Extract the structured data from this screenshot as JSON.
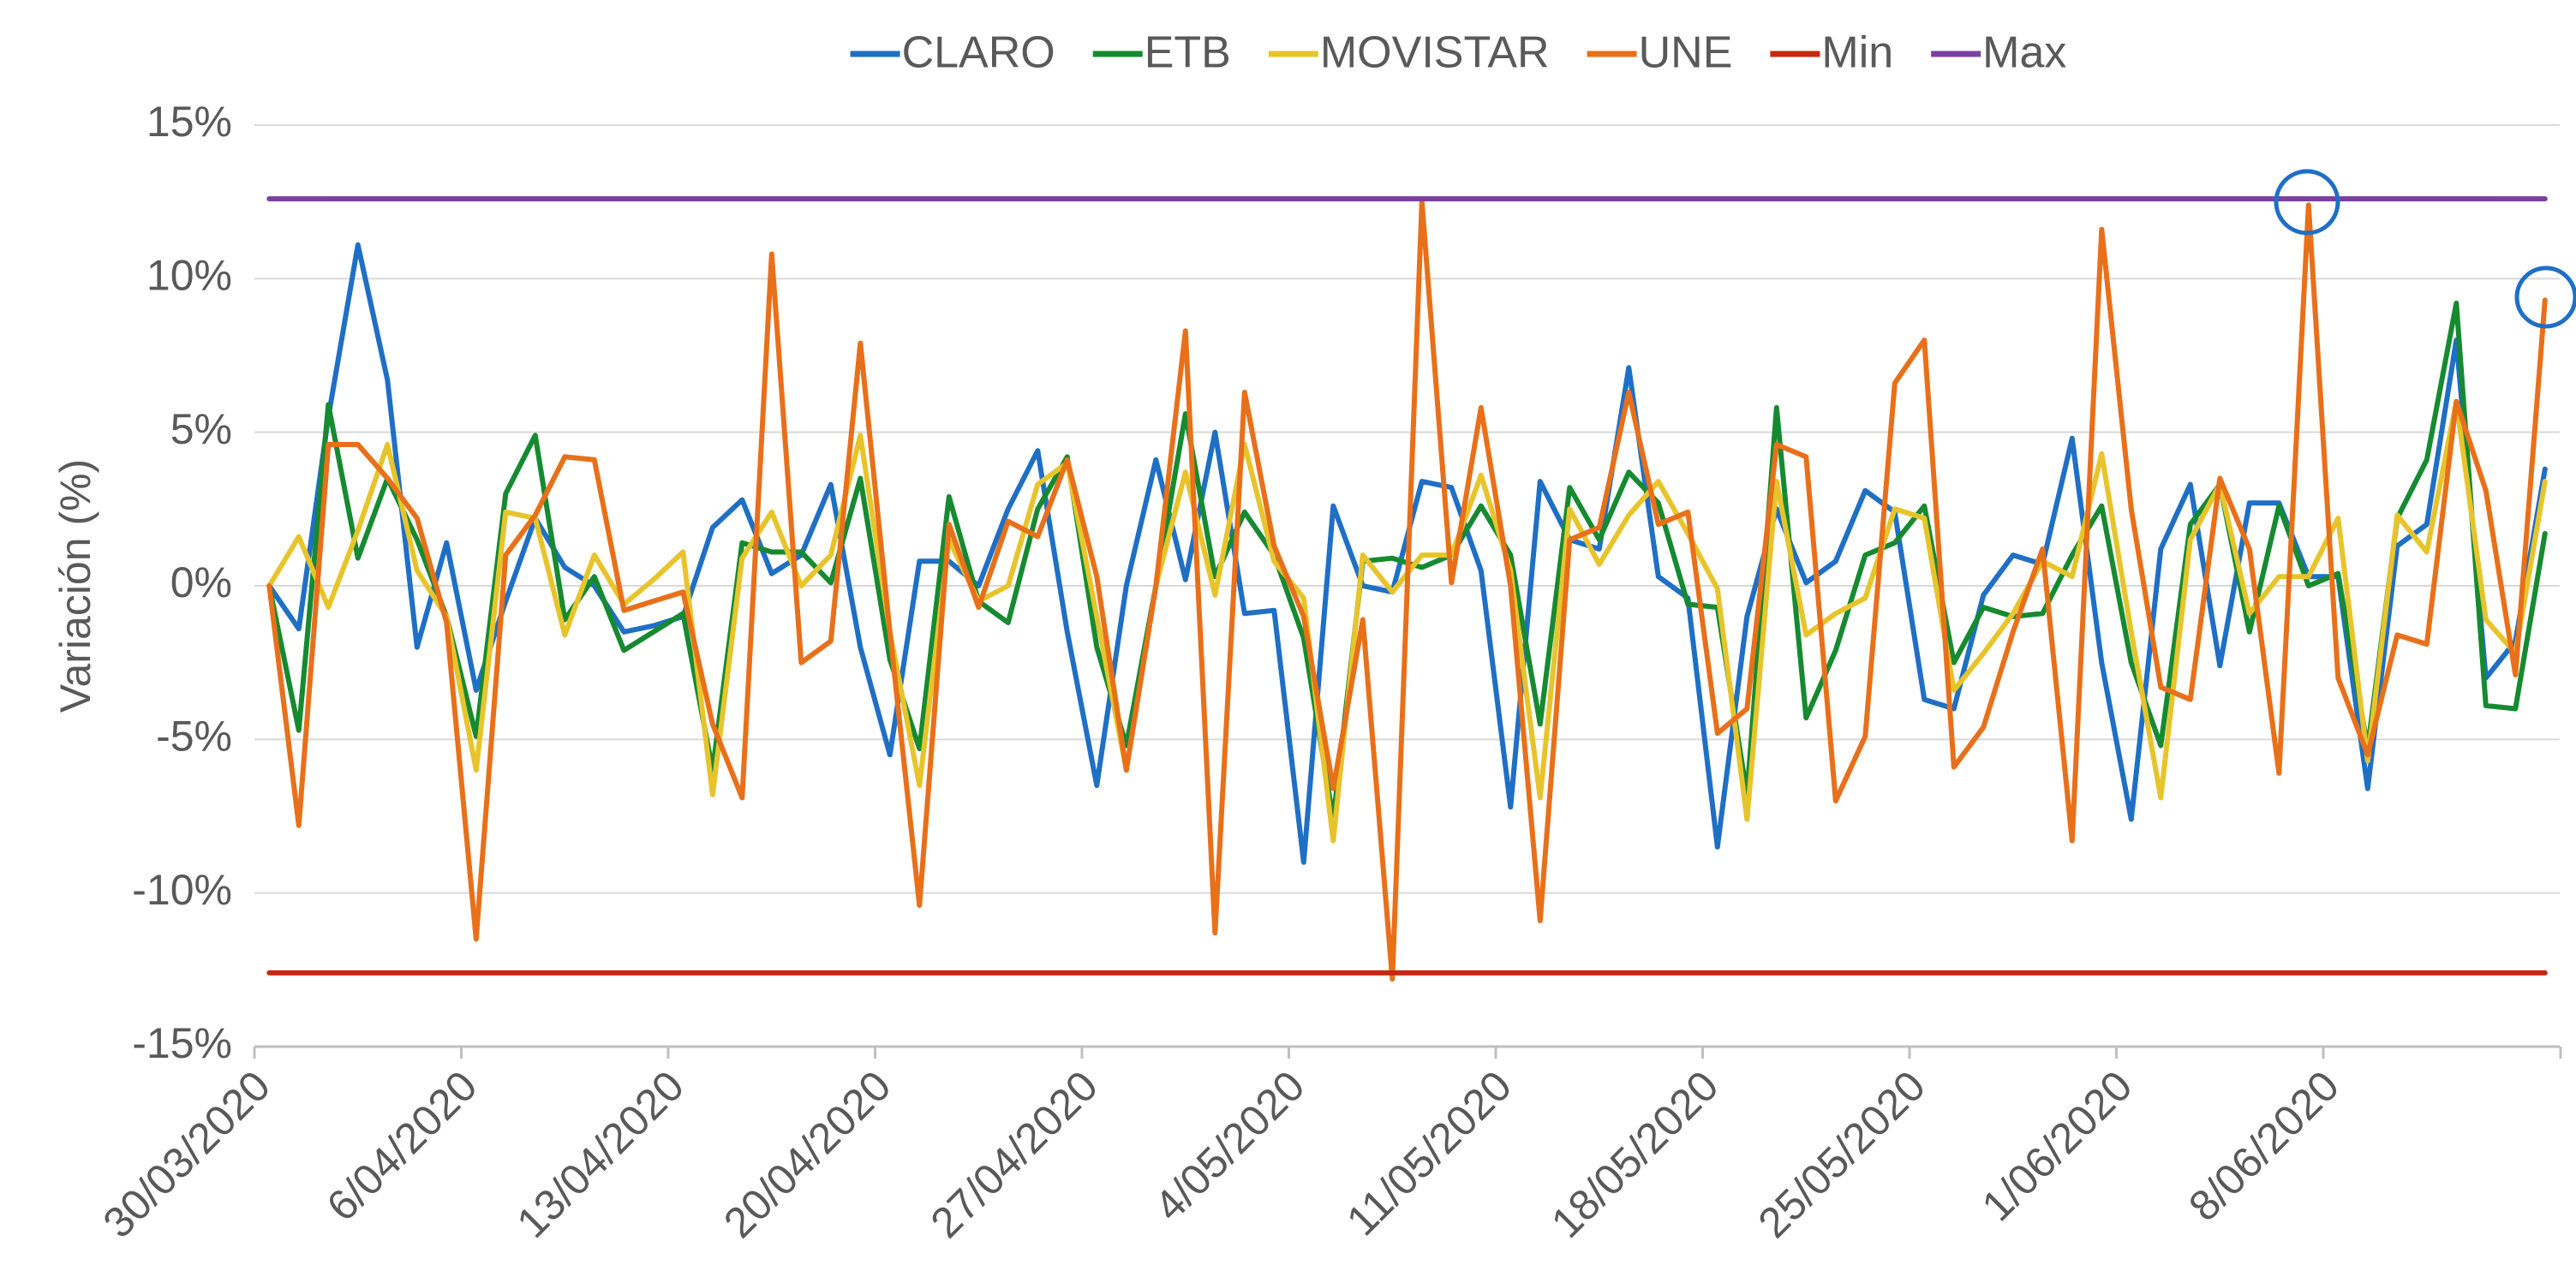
{
  "chart_data": {
    "type": "line",
    "y_label": "Variación (%)",
    "categories": [
      "30/03/2020",
      null,
      null,
      null,
      null,
      null,
      null,
      "6/04/2020",
      null,
      null,
      null,
      null,
      null,
      null,
      "13/04/2020",
      null,
      null,
      null,
      null,
      null,
      null,
      "20/04/2020",
      null,
      null,
      null,
      null,
      null,
      null,
      "27/04/2020",
      null,
      null,
      null,
      null,
      null,
      null,
      "4/05/2020",
      null,
      null,
      null,
      null,
      null,
      null,
      "11/05/2020",
      null,
      null,
      null,
      null,
      null,
      null,
      "18/05/2020",
      null,
      null,
      null,
      null,
      null,
      null,
      "25/05/2020",
      null,
      null,
      null,
      null,
      null,
      null,
      "1/06/2020",
      null,
      null,
      null,
      null,
      null,
      null,
      "8/06/2020",
      null,
      null,
      null,
      null,
      null,
      null,
      null
    ],
    "series": [
      {
        "name": "CLARO",
        "color": "#1f6fc5",
        "values": [
          0,
          -1.4,
          5.5,
          11.1,
          6.7,
          -2,
          1.4,
          -3.4,
          -0.5,
          2.2,
          0.6,
          0,
          -1.5,
          -1.3,
          -1,
          1.9,
          2.8,
          0.4,
          1,
          3.3,
          -2,
          -5.5,
          0.8,
          0.8,
          0,
          2.5,
          4.4,
          -1.5,
          -6.5,
          0,
          4.1,
          0.2,
          5,
          -0.9,
          -0.8,
          -9,
          2.6,
          0,
          -0.2,
          3.4,
          3.2,
          0.5,
          -7.2,
          3.4,
          1.5,
          1.2,
          7.1,
          0.3,
          -0.4,
          -8.5,
          -1,
          2.5,
          0.1,
          0.8,
          3.1,
          2.4,
          -3.7,
          -4,
          -0.3,
          1,
          0.7,
          4.8,
          -2.5,
          -7.6,
          1.2,
          3.3,
          -2.6,
          2.7,
          2.7,
          0.3,
          0.3,
          -6.6,
          1.3,
          2,
          8,
          -3,
          -1.8,
          3.8
        ]
      },
      {
        "name": "ETB",
        "color": "#168a30",
        "values": [
          0,
          -4.7,
          5.9,
          0.9,
          3.5,
          1.5,
          -1,
          -4.9,
          3,
          4.9,
          -1.1,
          0.3,
          -2.1,
          -1.5,
          -0.9,
          -6,
          1.4,
          1.1,
          1.1,
          0.1,
          3.5,
          -2.4,
          -5.3,
          2.9,
          -0.5,
          -1.2,
          2.5,
          4.2,
          -2,
          -5.2,
          0,
          5.6,
          0.3,
          2.4,
          1,
          -1.7,
          -7.6,
          0.8,
          0.9,
          0.6,
          1,
          2.6,
          1,
          -4.5,
          3.2,
          1.5,
          3.7,
          2.7,
          -0.6,
          -0.7,
          -6.8,
          5.8,
          -4.3,
          -2.1,
          1,
          1.4,
          2.6,
          -2.5,
          -0.7,
          -1,
          -0.9,
          1,
          2.6,
          -2.5,
          -5.2,
          2,
          3.3,
          -1.5,
          2.6,
          0,
          0.4,
          -5.3,
          2.2,
          4.1,
          9.2,
          -3.9,
          -4,
          1.7
        ]
      },
      {
        "name": "MOVISTAR",
        "color": "#e8c42c",
        "values": [
          0,
          1.6,
          -0.7,
          1.8,
          4.6,
          0.5,
          -1,
          -6,
          2.4,
          2.2,
          -1.6,
          1,
          -0.6,
          0.2,
          1.1,
          -6.8,
          0.9,
          2.4,
          0,
          1,
          4.9,
          -1.5,
          -6.5,
          1.5,
          -0.5,
          0,
          3.3,
          4,
          -1,
          -6,
          0,
          3.7,
          -0.3,
          4.6,
          0.8,
          -0.4,
          -8.3,
          1,
          -0.2,
          1,
          1,
          3.6,
          0.5,
          -6.9,
          2.5,
          0.7,
          2.3,
          3.4,
          1.7,
          -0.1,
          -7.6,
          3.4,
          -1.6,
          -0.9,
          -0.4,
          2.5,
          2.2,
          -3.4,
          -2.2,
          -0.9,
          0.8,
          0.3,
          4.3,
          -1.5,
          -6.9,
          1.5,
          3.3,
          -0.9,
          0.3,
          0.3,
          2.2,
          -5.7,
          2.3,
          1.1,
          6,
          -1.1,
          -2.2,
          3.4
        ]
      },
      {
        "name": "UNE",
        "color": "#e8701a",
        "values": [
          0,
          -7.8,
          4.6,
          4.6,
          3.5,
          2.2,
          -1.2,
          -11.5,
          1,
          2.3,
          4.2,
          4.1,
          -0.8,
          -0.5,
          -0.2,
          -4.5,
          -6.9,
          10.8,
          -2.5,
          -1.8,
          7.9,
          -1.5,
          -10.4,
          2,
          -0.7,
          2.1,
          1.6,
          4.1,
          0.3,
          -6,
          0,
          8.3,
          -11.3,
          6.3,
          1.3,
          -1,
          -6.6,
          -1.1,
          -12.8,
          12.5,
          0.1,
          5.8,
          0,
          -10.9,
          1.5,
          1.9,
          6.3,
          2,
          2.4,
          -4.8,
          -4,
          4.6,
          4.2,
          -7,
          -4.9,
          6.6,
          8,
          -5.9,
          -4.6,
          -1.5,
          1.2,
          -8.3,
          11.6,
          2.5,
          -3.3,
          -3.7,
          3.5,
          1.2,
          -6.1,
          12.4,
          -3,
          -5.5,
          -1.6,
          -1.9,
          6,
          3.1,
          -2.9,
          9.3
        ]
      },
      {
        "name": "Min",
        "color": "#c8280f",
        "values": [
          -12.6,
          -12.6,
          -12.6,
          -12.6,
          -12.6,
          -12.6,
          -12.6,
          -12.6,
          -12.6,
          -12.6,
          -12.6,
          -12.6,
          -12.6,
          -12.6,
          -12.6,
          -12.6,
          -12.6,
          -12.6,
          -12.6,
          -12.6,
          -12.6,
          -12.6,
          -12.6,
          -12.6,
          -12.6,
          -12.6,
          -12.6,
          -12.6,
          -12.6,
          -12.6,
          -12.6,
          -12.6,
          -12.6,
          -12.6,
          -12.6,
          -12.6,
          -12.6,
          -12.6,
          -12.6,
          -12.6,
          -12.6,
          -12.6,
          -12.6,
          -12.6,
          -12.6,
          -12.6,
          -12.6,
          -12.6,
          -12.6,
          -12.6,
          -12.6,
          -12.6,
          -12.6,
          -12.6,
          -12.6,
          -12.6,
          -12.6,
          -12.6,
          -12.6,
          -12.6,
          -12.6,
          -12.6,
          -12.6,
          -12.6,
          -12.6,
          -12.6,
          -12.6,
          -12.6,
          -12.6,
          -12.6,
          -12.6,
          -12.6,
          -12.6,
          -12.6,
          -12.6,
          -12.6,
          -12.6,
          -12.6
        ]
      },
      {
        "name": "Max",
        "color": "#7b3fa0",
        "values": [
          12.6,
          12.6,
          12.6,
          12.6,
          12.6,
          12.6,
          12.6,
          12.6,
          12.6,
          12.6,
          12.6,
          12.6,
          12.6,
          12.6,
          12.6,
          12.6,
          12.6,
          12.6,
          12.6,
          12.6,
          12.6,
          12.6,
          12.6,
          12.6,
          12.6,
          12.6,
          12.6,
          12.6,
          12.6,
          12.6,
          12.6,
          12.6,
          12.6,
          12.6,
          12.6,
          12.6,
          12.6,
          12.6,
          12.6,
          12.6,
          12.6,
          12.6,
          12.6,
          12.6,
          12.6,
          12.6,
          12.6,
          12.6,
          12.6,
          12.6,
          12.6,
          12.6,
          12.6,
          12.6,
          12.6,
          12.6,
          12.6,
          12.6,
          12.6,
          12.6,
          12.6,
          12.6,
          12.6,
          12.6,
          12.6,
          12.6,
          12.6,
          12.6,
          12.6,
          12.6,
          12.6,
          12.6,
          12.6,
          12.6,
          12.6,
          12.6,
          12.6,
          12.6
        ]
      }
    ],
    "ylim": [
      -15,
      15
    ],
    "yticks": [
      {
        "value": -15,
        "label": "-15%"
      },
      {
        "value": -10,
        "label": "-10%"
      },
      {
        "value": -5,
        "label": "-5%"
      },
      {
        "value": 0,
        "label": "0%"
      },
      {
        "value": 5,
        "label": "5%"
      },
      {
        "value": 10,
        "label": "10%"
      },
      {
        "value": 15,
        "label": "15%"
      }
    ],
    "grid": true,
    "legend": "top"
  }
}
